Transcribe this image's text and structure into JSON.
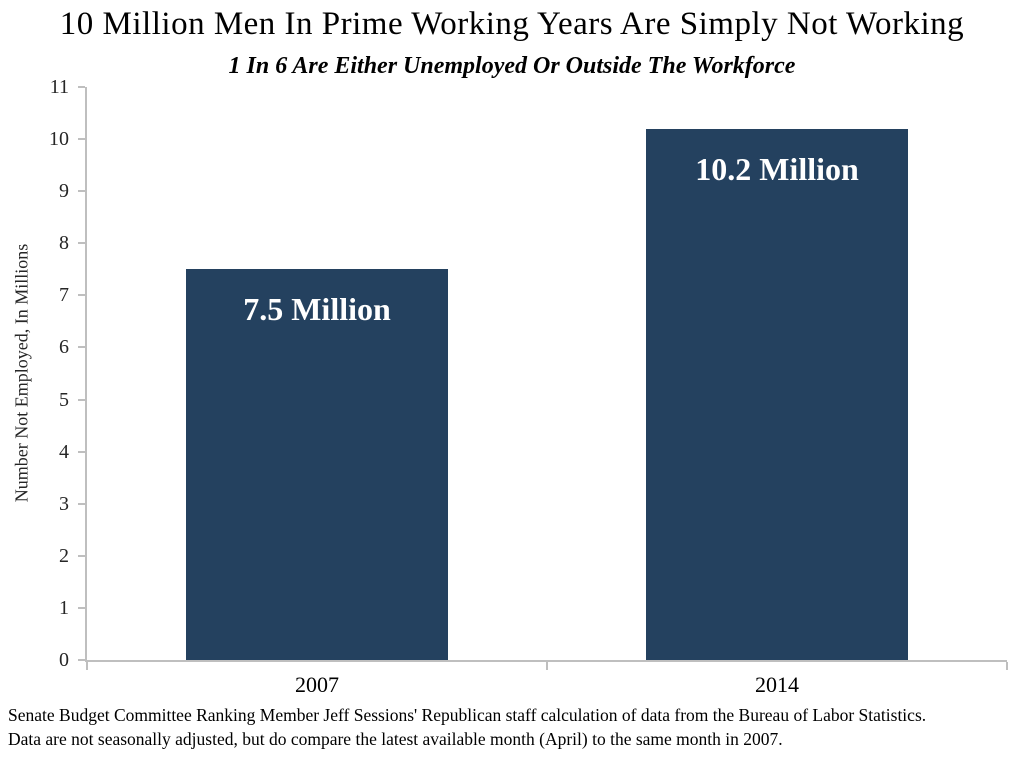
{
  "page": {
    "title": "10 Million Men In Prime Working Years Are Simply Not Working",
    "subtitle": "1 In 6 Are Either Unemployed Or Outside The Workforce"
  },
  "footer": {
    "line1": "Senate Budget Committee Ranking Member Jeff Sessions' Republican staff calculation of data from the Bureau of Labor Statistics.",
    "line2": "Data are not seasonally adjusted, but do compare the latest available month (April) to the same month in 2007."
  },
  "chart_data": {
    "type": "bar",
    "categories": [
      "2007",
      "2014"
    ],
    "values": [
      7.5,
      10.2
    ],
    "bar_labels": [
      "7.5 Million",
      "10.2 Million"
    ],
    "title": "10 Million Men In Prime Working Years Are Simply Not Working",
    "subtitle": "1 In 6 Are Either Unemployed Or Outside The Workforce",
    "xlabel": "",
    "ylabel": "Number Not Employed, In Millions",
    "ylim": [
      0,
      11
    ],
    "ytick_interval": 1,
    "yticks": [
      0,
      1,
      2,
      3,
      4,
      5,
      6,
      7,
      8,
      9,
      10,
      11
    ],
    "grid": false,
    "legend_position": "none",
    "bar_color": "#24415F",
    "bar_label_color": "#FFFFFF",
    "axis_color": "#BFBFBF",
    "tick_text_color": "#262626"
  }
}
